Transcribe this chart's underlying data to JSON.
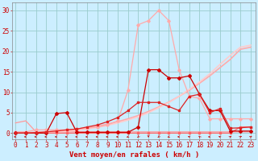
{
  "x": [
    0,
    1,
    2,
    3,
    4,
    5,
    6,
    7,
    8,
    9,
    10,
    11,
    12,
    13,
    14,
    15,
    16,
    17,
    18,
    19,
    20,
    21,
    22,
    23
  ],
  "background_color": "#cceeff",
  "grid_color": "#99cccc",
  "xlabel": "Vent moyen/en rafales ( km/h )",
  "xlabel_color": "#cc0000",
  "xlabel_fontsize": 6.5,
  "yticks": [
    0,
    5,
    10,
    15,
    20,
    25,
    30
  ],
  "ylim": [
    -1.5,
    32
  ],
  "xlim": [
    -0.3,
    23.5
  ],
  "tick_color": "#cc0000",
  "tick_fontsize": 5.5,
  "lines": [
    {
      "y": [
        0.0,
        0.0,
        0.0,
        0.0,
        0.0,
        0.0,
        0.0,
        0.0,
        0.0,
        0.0,
        0.0,
        0.0,
        0.0,
        0.0,
        0.0,
        0.0,
        0.0,
        0.0,
        0.0,
        0.0,
        0.0,
        0.0,
        1.5,
        1.5
      ],
      "color": "#ff6666",
      "lw": 0.9,
      "marker": "s",
      "ms": 1.8,
      "zorder": 4
    },
    {
      "y": [
        2.5,
        3.0,
        0.3,
        0.3,
        0.3,
        0.3,
        0.3,
        0.3,
        0.3,
        0.3,
        0.3,
        0.3,
        0.3,
        0.3,
        0.3,
        0.3,
        0.3,
        0.3,
        0.3,
        0.3,
        0.3,
        0.3,
        0.3,
        0.3
      ],
      "color": "#ff9999",
      "lw": 0.9,
      "marker": null,
      "ms": 0,
      "zorder": 2
    },
    {
      "y": [
        0.0,
        0.1,
        0.2,
        0.3,
        0.5,
        0.7,
        1.0,
        1.3,
        1.7,
        2.2,
        2.8,
        3.5,
        4.3,
        5.3,
        6.4,
        7.6,
        9.0,
        10.5,
        12.2,
        14.0,
        16.0,
        18.0,
        20.5,
        21.0
      ],
      "color": "#ffaaaa",
      "lw": 1.2,
      "marker": null,
      "ms": 0,
      "zorder": 2
    },
    {
      "y": [
        0.0,
        0.05,
        0.1,
        0.2,
        0.3,
        0.5,
        0.7,
        1.0,
        1.4,
        1.9,
        2.5,
        3.2,
        4.0,
        5.0,
        6.2,
        7.5,
        9.0,
        10.7,
        12.5,
        14.5,
        16.8,
        19.0,
        21.0,
        21.5
      ],
      "color": "#ffcccc",
      "lw": 1.2,
      "marker": null,
      "ms": 0,
      "zorder": 2
    },
    {
      "y": [
        0.3,
        0.3,
        0.8,
        0.8,
        0.8,
        0.8,
        1.0,
        1.2,
        1.5,
        2.0,
        3.0,
        10.5,
        26.5,
        27.5,
        30.0,
        27.5,
        15.5,
        9.0,
        8.5,
        3.5,
        3.5,
        3.5,
        3.5,
        3.5
      ],
      "color": "#ffaaaa",
      "lw": 0.9,
      "marker": "D",
      "ms": 1.8,
      "zorder": 3
    },
    {
      "y": [
        0.0,
        0.0,
        0.0,
        0.0,
        4.8,
        5.0,
        0.2,
        0.2,
        0.2,
        0.2,
        0.2,
        0.2,
        1.5,
        15.5,
        15.5,
        13.5,
        13.5,
        14.0,
        9.5,
        5.5,
        5.5,
        0.5,
        0.5,
        0.5
      ],
      "color": "#cc0000",
      "lw": 0.9,
      "marker": "D",
      "ms": 2.0,
      "zorder": 4
    },
    {
      "y": [
        0.0,
        0.0,
        0.1,
        0.3,
        0.5,
        0.8,
        1.0,
        1.5,
        2.0,
        2.8,
        3.8,
        5.5,
        7.5,
        7.5,
        7.5,
        6.5,
        5.5,
        9.0,
        9.5,
        5.0,
        6.0,
        1.2,
        1.3,
        1.5
      ],
      "color": "#dd2222",
      "lw": 0.9,
      "marker": "s",
      "ms": 2.0,
      "zorder": 4
    }
  ],
  "arrow_angles": [
    270,
    270,
    270,
    270,
    270,
    270,
    270,
    270,
    270,
    270,
    270,
    240,
    210,
    180,
    210,
    240,
    270,
    300,
    330,
    270,
    300,
    45,
    45,
    45
  ]
}
